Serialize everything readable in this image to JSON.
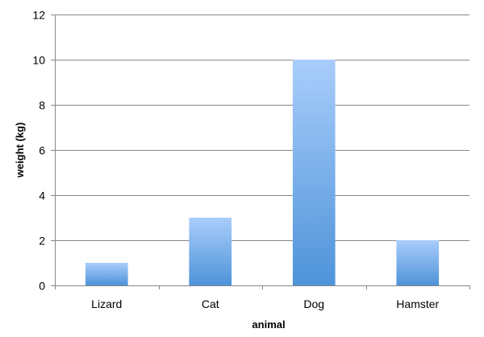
{
  "chart_data": {
    "type": "bar",
    "categories": [
      "Lizard",
      "Cat",
      "Dog",
      "Hamster"
    ],
    "values": [
      1,
      3,
      10,
      2
    ],
    "title": "",
    "xlabel": "animal",
    "ylabel": "weight (kg)",
    "ylim": [
      0,
      12
    ],
    "yticks": [
      "0",
      "2",
      "4",
      "6",
      "8",
      "10",
      "12"
    ],
    "grid": true,
    "legend": "none",
    "colors": {
      "bar_top": "#a9cdfb",
      "bar_bottom": "#4e93d9",
      "grid": "#878787",
      "axis": "#878787",
      "text": "#000000"
    }
  }
}
